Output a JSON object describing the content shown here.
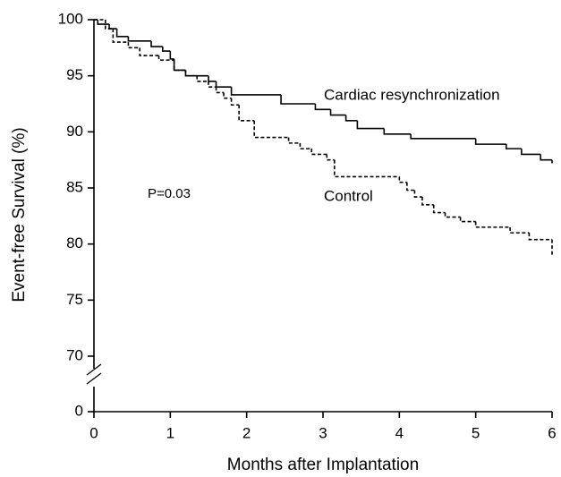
{
  "chart_data": {
    "type": "step",
    "xlabel": "Months after Implantation",
    "ylabel": "Event-free Survival (%)",
    "annotations": [
      "Cardiac resynchronization",
      "Control",
      "P=0.03"
    ],
    "xlim": [
      0,
      6
    ],
    "xticks": [
      0,
      1,
      2,
      3,
      4,
      5,
      6
    ],
    "ylim": [
      0,
      100
    ],
    "ybreak": [
      0,
      70
    ],
    "yticks": [
      0,
      70,
      75,
      80,
      85,
      90,
      95,
      100
    ],
    "series": [
      {
        "name": "Cardiac resynchronization",
        "color": "#000000",
        "dash": false,
        "x": [
          0,
          0.05,
          0.2,
          0.3,
          0.45,
          0.75,
          0.9,
          1.0,
          1.05,
          1.2,
          1.5,
          1.6,
          1.8,
          2.45,
          2.9,
          3.1,
          3.3,
          3.45,
          3.8,
          4.15,
          5.0,
          5.4,
          5.6,
          5.85,
          6.0
        ],
        "values": [
          100,
          99.6,
          99.2,
          98.5,
          98.1,
          97.6,
          97.2,
          96.5,
          95.5,
          95.0,
          94.5,
          94.0,
          93.3,
          92.5,
          92.0,
          91.5,
          91.0,
          90.3,
          89.8,
          89.4,
          88.9,
          88.5,
          88.0,
          87.5,
          87.2
        ]
      },
      {
        "name": "Control",
        "color": "#000000",
        "dash": true,
        "x": [
          0,
          0.15,
          0.25,
          0.45,
          0.6,
          0.85,
          1.05,
          1.2,
          1.35,
          1.5,
          1.6,
          1.7,
          1.8,
          1.9,
          2.1,
          2.55,
          2.7,
          2.85,
          3.05,
          3.15,
          4.0,
          4.1,
          4.2,
          4.3,
          4.45,
          4.6,
          4.8,
          5.0,
          5.45,
          5.7,
          6.0
        ],
        "values": [
          100,
          99.2,
          98.0,
          97.5,
          96.8,
          96.4,
          95.5,
          95.0,
          94.5,
          94.0,
          93.5,
          93.0,
          92.4,
          91.0,
          89.5,
          89.0,
          88.5,
          88.0,
          87.5,
          86.0,
          85.5,
          84.8,
          84.2,
          83.5,
          82.8,
          82.4,
          82.0,
          81.5,
          81.0,
          80.4,
          79.0
        ]
      }
    ]
  }
}
